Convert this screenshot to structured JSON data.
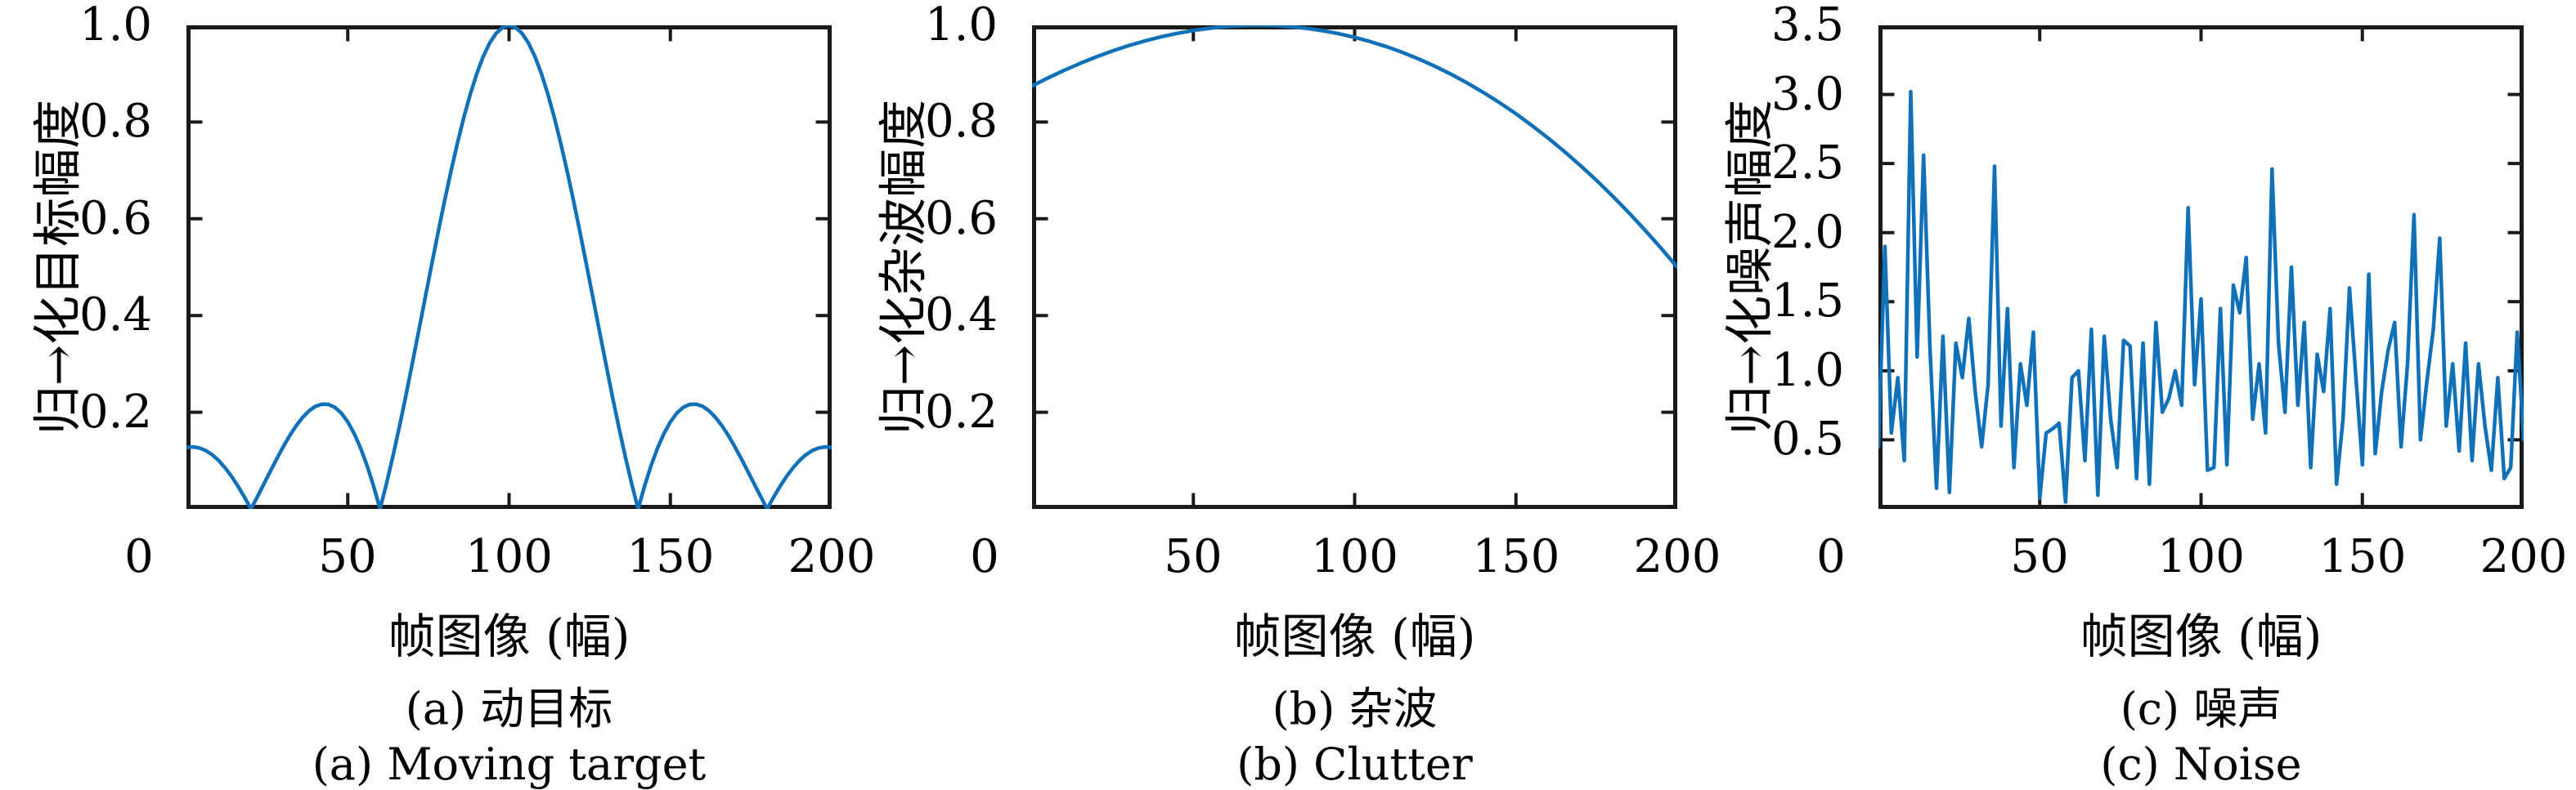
{
  "figure": {
    "background": "#ffffff",
    "axis_color": "#1a1a1a",
    "line_color": "#1070b8"
  },
  "x_tick_labels": [
    "0",
    "50",
    "100",
    "150",
    "200"
  ],
  "charts": [
    {
      "ylabel": "归→化目标幅度",
      "xlabel": "帧图像 (幅)",
      "ytick_labels": [
        "1.0",
        "0.8",
        "0.6",
        "0.4",
        "0.2"
      ],
      "caption_zh": "(a) 动目标",
      "caption_en": "(a) Moving target"
    },
    {
      "ylabel": "归→化杂波幅度",
      "xlabel": "帧图像 (幅)",
      "ytick_labels": [
        "1.0",
        "0.8",
        "0.6",
        "0.4",
        "0.2"
      ],
      "caption_zh": "(b) 杂波",
      "caption_en": "(b) Clutter"
    },
    {
      "ylabel": "归→化噪声幅度",
      "xlabel": "帧图像 (幅)",
      "ytick_labels": [
        "3.5",
        "3.0",
        "2.5",
        "2.0",
        "1.5",
        "1.0",
        "0.5"
      ],
      "caption_zh": "(c) 噪声",
      "caption_en": "(c) Noise"
    }
  ],
  "chart_data": [
    {
      "type": "line",
      "title": "(a) Moving target / 动目标",
      "xlabel": "帧图像 (幅)",
      "ylabel": "归→化目标幅度",
      "xlim": [
        0,
        200
      ],
      "ylim": [
        0,
        1
      ],
      "xticks": [
        0,
        50,
        100,
        150,
        200
      ],
      "yticks": [
        0.2,
        0.4,
        0.6,
        0.8,
        1.0
      ],
      "grid": false,
      "legend": "none",
      "x": [
        0,
        2,
        4,
        6,
        8,
        10,
        12,
        14,
        16,
        18,
        20,
        22,
        24,
        26,
        28,
        30,
        32,
        34,
        36,
        38,
        40,
        42,
        44,
        46,
        48,
        50,
        52,
        54,
        56,
        58,
        60,
        62,
        64,
        66,
        68,
        70,
        72,
        74,
        76,
        78,
        80,
        82,
        84,
        86,
        88,
        90,
        92,
        94,
        96,
        98,
        100,
        102,
        104,
        106,
        108,
        110,
        112,
        114,
        116,
        118,
        120,
        122,
        124,
        126,
        128,
        130,
        132,
        134,
        136,
        138,
        140,
        142,
        144,
        146,
        148,
        150,
        152,
        154,
        156,
        158,
        160,
        162,
        164,
        166,
        168,
        170,
        172,
        174,
        176,
        178,
        180,
        182,
        184,
        186,
        188,
        190,
        192,
        194,
        196,
        198,
        200
      ],
      "y": [
        0.1273,
        0.1283,
        0.1261,
        0.1207,
        0.112,
        0.1,
        0.085,
        0.0672,
        0.0468,
        0.0243,
        0,
        0.0255,
        0.0518,
        0.0781,
        0.1039,
        0.1286,
        0.1515,
        0.1719,
        0.1892,
        0.2028,
        0.2122,
        0.2168,
        0.2162,
        0.2101,
        0.1981,
        0.1801,
        0.1559,
        0.1257,
        0.0894,
        0.0474,
        0,
        0.0524,
        0.1093,
        0.17,
        0.2339,
        0.3001,
        0.3679,
        0.4364,
        0.5046,
        0.5716,
        0.6366,
        0.6985,
        0.7568,
        0.8103,
        0.8584,
        0.9003,
        0.9355,
        0.9635,
        0.9836,
        0.9955,
        1.0,
        0.9955,
        0.9836,
        0.9635,
        0.9355,
        0.9003,
        0.8584,
        0.8103,
        0.7568,
        0.6985,
        0.6366,
        0.5716,
        0.5046,
        0.4364,
        0.3679,
        0.3001,
        0.2339,
        0.17,
        0.1093,
        0.0524,
        0,
        0.0474,
        0.0894,
        0.1257,
        0.1559,
        0.1801,
        0.1981,
        0.2101,
        0.2162,
        0.2168,
        0.2122,
        0.2028,
        0.1892,
        0.1719,
        0.1515,
        0.1286,
        0.1039,
        0.0781,
        0.0518,
        0.0255,
        0,
        0.0243,
        0.0468,
        0.0672,
        0.085,
        0.1,
        0.112,
        0.1207,
        0.1261,
        0.1283,
        0.1273
      ]
    },
    {
      "type": "line",
      "title": "(b) Clutter / 杂波",
      "xlabel": "帧图像 (幅)",
      "ylabel": "归→化杂波幅度",
      "xlim": [
        0,
        200
      ],
      "ylim": [
        0,
        1
      ],
      "xticks": [
        0,
        50,
        100,
        150,
        200
      ],
      "yticks": [
        0.2,
        0.4,
        0.6,
        0.8,
        1.0
      ],
      "grid": false,
      "legend": "none",
      "x": [
        0,
        5,
        10,
        15,
        20,
        25,
        30,
        35,
        40,
        45,
        50,
        55,
        60,
        65,
        70,
        75,
        80,
        85,
        90,
        95,
        100,
        105,
        110,
        115,
        120,
        125,
        130,
        135,
        140,
        145,
        150,
        155,
        160,
        165,
        170,
        175,
        180,
        185,
        190,
        195,
        200
      ],
      "y": [
        0.8746,
        0.8914,
        0.9071,
        0.9217,
        0.935,
        0.9471,
        0.9581,
        0.9678,
        0.9762,
        0.9834,
        0.9894,
        0.994,
        0.9973,
        0.9993,
        1.0,
        0.9993,
        0.9973,
        0.9939,
        0.989,
        0.9828,
        0.9752,
        0.9661,
        0.9555,
        0.9435,
        0.93,
        0.915,
        0.8985,
        0.8804,
        0.8608,
        0.8397,
        0.817,
        0.7926,
        0.7667,
        0.7392,
        0.71,
        0.6792,
        0.6467,
        0.6125,
        0.5766,
        0.5391,
        0.5
      ]
    },
    {
      "type": "line",
      "title": "(c) Noise / 噪声",
      "xlabel": "帧图像 (幅)",
      "ylabel": "归→化噪声幅度",
      "xlim": [
        0,
        200
      ],
      "ylim": [
        0,
        3.5
      ],
      "xticks": [
        0,
        50,
        100,
        150,
        200
      ],
      "yticks": [
        0.5,
        1.0,
        1.5,
        2.0,
        2.5,
        3.0,
        3.5
      ],
      "grid": false,
      "legend": "none",
      "x": [
        0,
        2,
        4,
        6,
        8,
        10,
        12,
        14,
        16,
        18,
        20,
        22,
        24,
        26,
        28,
        30,
        32,
        34,
        36,
        38,
        40,
        42,
        44,
        46,
        48,
        50,
        52,
        54,
        56,
        58,
        60,
        62,
        64,
        66,
        68,
        70,
        72,
        74,
        76,
        78,
        80,
        82,
        84,
        86,
        88,
        90,
        92,
        94,
        96,
        98,
        100,
        102,
        104,
        106,
        108,
        110,
        112,
        114,
        116,
        118,
        120,
        122,
        124,
        126,
        128,
        130,
        132,
        134,
        136,
        138,
        140,
        142,
        144,
        146,
        148,
        150,
        152,
        154,
        156,
        158,
        160,
        162,
        164,
        166,
        168,
        170,
        172,
        174,
        176,
        178,
        180,
        182,
        184,
        186,
        188,
        190,
        192,
        194,
        196,
        198,
        200
      ],
      "y": [
        0.45,
        1.9,
        0.55,
        0.95,
        0.35,
        3.02,
        1.1,
        2.56,
        1.15,
        0.15,
        1.25,
        0.12,
        1.2,
        0.95,
        1.38,
        0.85,
        0.45,
        0.9,
        2.48,
        0.6,
        1.45,
        0.3,
        1.05,
        0.75,
        1.28,
        0.08,
        0.55,
        0.58,
        0.62,
        0.05,
        0.95,
        1.0,
        0.35,
        1.3,
        0.1,
        1.25,
        0.65,
        0.3,
        1.22,
        1.18,
        0.22,
        1.2,
        0.18,
        1.35,
        0.7,
        0.8,
        1.0,
        0.75,
        2.18,
        0.9,
        1.52,
        0.28,
        0.3,
        1.45,
        0.32,
        1.62,
        1.42,
        1.82,
        0.65,
        1.05,
        0.55,
        2.46,
        1.2,
        0.7,
        1.75,
        0.75,
        1.35,
        0.3,
        1.12,
        0.85,
        1.45,
        0.18,
        0.65,
        1.6,
        0.95,
        0.32,
        1.7,
        0.4,
        0.85,
        1.15,
        1.35,
        0.45,
        1.05,
        2.13,
        0.5,
        0.92,
        1.3,
        1.96,
        0.6,
        1.05,
        0.42,
        1.2,
        0.35,
        1.05,
        0.6,
        0.28,
        0.95,
        0.22,
        0.3,
        1.28,
        0.5
      ]
    }
  ]
}
